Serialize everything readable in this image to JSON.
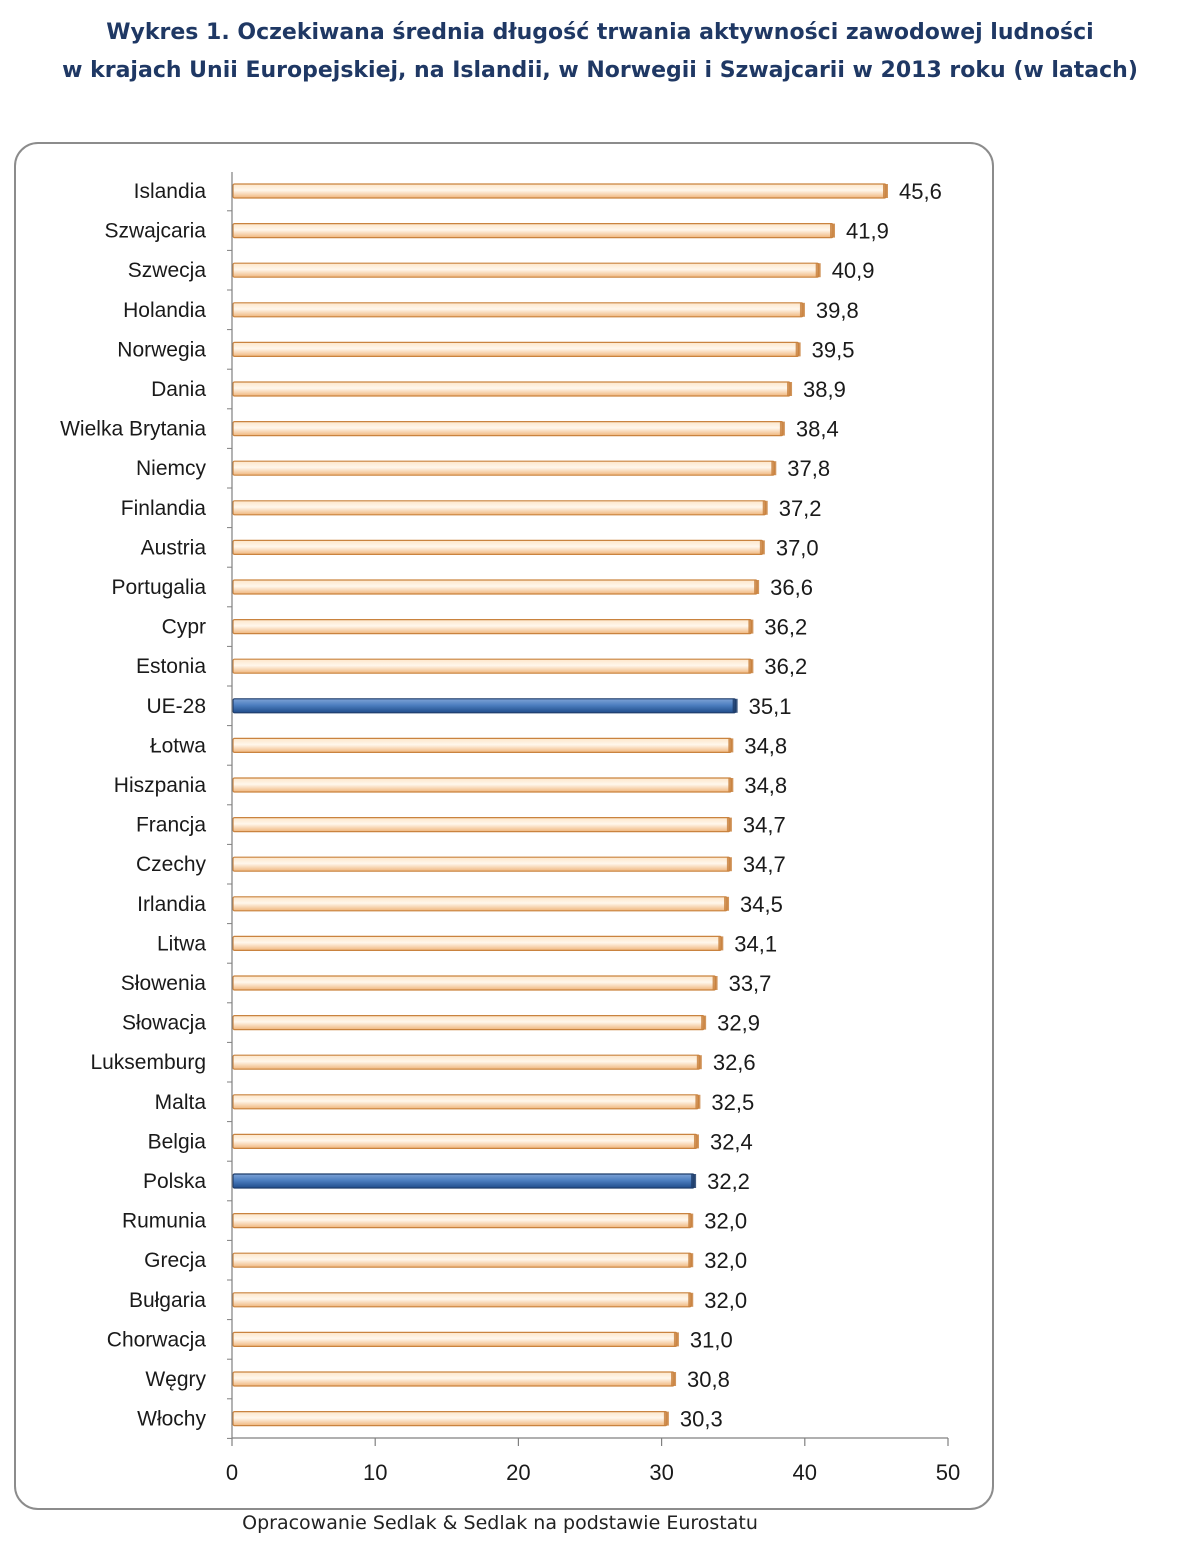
{
  "chart_data": {
    "type": "bar",
    "orientation": "horizontal",
    "title": "Wykres 1. Oczekiwana średnia długość trwania aktywności zawodowej ludności",
    "subtitle": "w krajach Unii Europejskiej, na Islandii, w Norwegii i Szwajcarii w 2013 roku (w latach)",
    "categories": [
      "Islandia",
      "Szwajcaria",
      "Szwecja",
      "Holandia",
      "Norwegia",
      "Dania",
      "Wielka Brytania",
      "Niemcy",
      "Finlandia",
      "Austria",
      "Portugalia",
      "Cypr",
      "Estonia",
      "UE-28",
      "Łotwa",
      "Hiszpania",
      "Francja",
      "Czechy",
      "Irlandia",
      "Litwa",
      "Słowenia",
      "Słowacja",
      "Luksemburg",
      "Malta",
      "Belgia",
      "Polska",
      "Rumunia",
      "Grecja",
      "Bułgaria",
      "Chorwacja",
      "Węgry",
      "Włochy"
    ],
    "values": [
      45.6,
      41.9,
      40.9,
      39.8,
      39.5,
      38.9,
      38.4,
      37.8,
      37.2,
      37.0,
      36.6,
      36.2,
      36.2,
      35.1,
      34.8,
      34.8,
      34.7,
      34.7,
      34.5,
      34.1,
      33.7,
      32.9,
      32.6,
      32.5,
      32.4,
      32.2,
      32.0,
      32.0,
      32.0,
      31.0,
      30.8,
      30.3
    ],
    "value_labels": [
      "45,6",
      "41,9",
      "40,9",
      "39,8",
      "39,5",
      "38,9",
      "38,4",
      "37,8",
      "37,2",
      "37,0",
      "36,6",
      "36,2",
      "36,2",
      "35,1",
      "34,8",
      "34,8",
      "34,7",
      "34,7",
      "34,5",
      "34,1",
      "33,7",
      "32,9",
      "32,6",
      "32,5",
      "32,4",
      "32,2",
      "32,0",
      "32,0",
      "32,0",
      "31,0",
      "30,8",
      "30,3"
    ],
    "highlighted": [
      "UE-28",
      "Polska"
    ],
    "xlim": [
      0,
      50
    ],
    "xticks": [
      0,
      10,
      20,
      30,
      40,
      50
    ],
    "grid": false,
    "legend": "none",
    "colors": {
      "bar": "#f6c89a",
      "bar_edge": "#c9833f",
      "highlight": "#3f6eae",
      "highlight_edge": "#1f3d6b",
      "title": "#1f3864"
    }
  },
  "source": "Opracowanie Sedlak & Sedlak na podstawie Eurostatu"
}
